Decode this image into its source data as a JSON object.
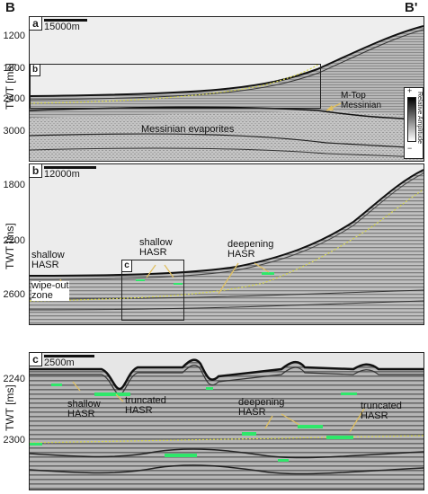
{
  "corners": {
    "left": "B",
    "right": "B'"
  },
  "y_axis_label": "TWT [ms]",
  "panel_a": {
    "label": "a",
    "scale": "15000m",
    "ticks": [
      "1200",
      "1800",
      "2400",
      "3000"
    ],
    "inset_label": "b",
    "annotations": {
      "m_top": "M-Top\nMessinian",
      "evaporites": "Messinian evaporites"
    },
    "legend": {
      "plus": "+",
      "minus": "−",
      "label": "Relative Amplitude"
    }
  },
  "panel_b": {
    "label": "b",
    "scale": "12000m",
    "ticks": [
      "1800",
      "2200",
      "2600"
    ],
    "inset_label": "c",
    "annotations": {
      "shallow_left": "shallow\nHASR",
      "wipeout": "wipe-out\nzone",
      "shallow_mid": "shallow\nHASR",
      "deepening": "deepening\nHASR"
    }
  },
  "panel_c": {
    "label": "c",
    "scale": "2500m",
    "ticks": [
      "2240",
      "2300"
    ],
    "annotations": {
      "shallow": "shallow\nHASR",
      "truncated_left": "truncated\nHASR",
      "deepening": "deepening\nHASR",
      "truncated_right": "truncated\nHASR"
    }
  },
  "colors": {
    "horizon_dashed": "#d8d84a",
    "hasr_highlight": "#2ee86a",
    "arrow": "#e0c060"
  }
}
